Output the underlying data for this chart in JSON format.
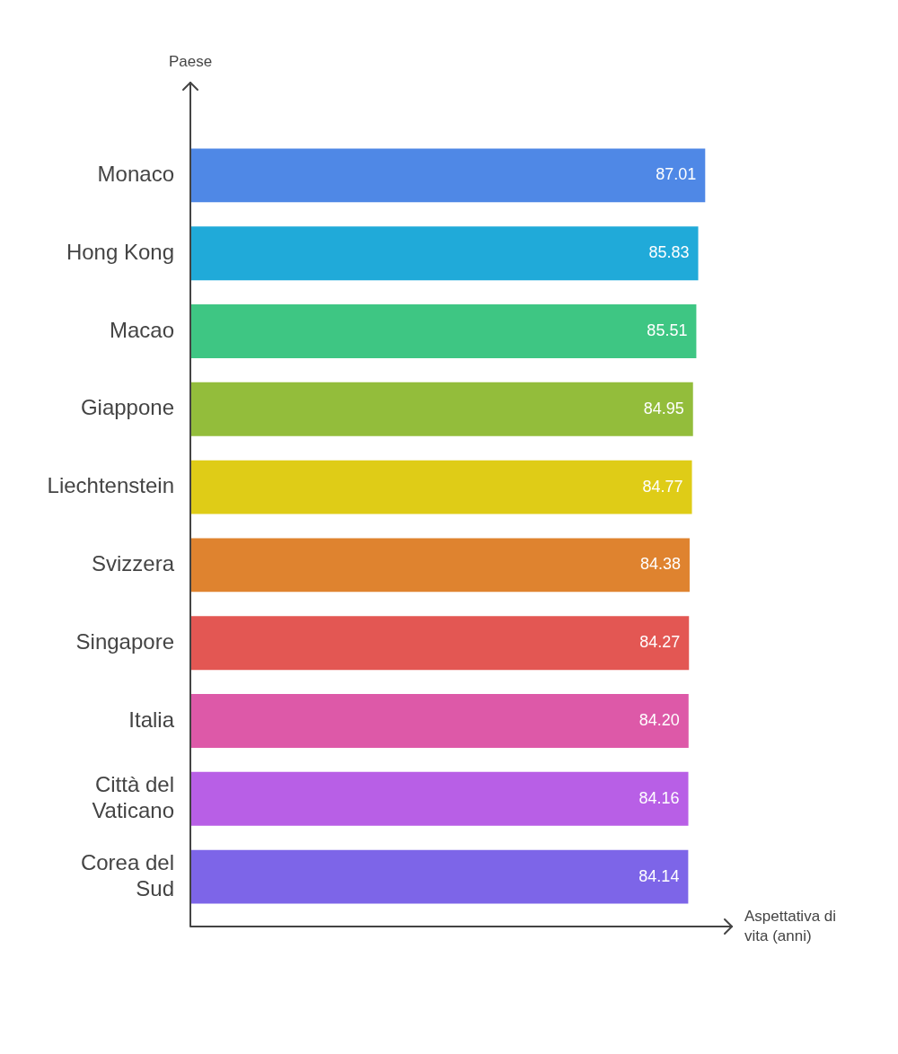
{
  "chart_data": {
    "type": "bar",
    "orientation": "horizontal",
    "xlabel": "Aspettativa di vita (anni)",
    "ylabel": "Paese",
    "categories": [
      "Monaco",
      "Hong Kong",
      "Macao",
      "Giappone",
      "Liechtenstein",
      "Svizzera",
      "Singapore",
      "Italia",
      "Città del Vaticano",
      "Corea del Sud"
    ],
    "values": [
      87.01,
      85.83,
      85.51,
      84.95,
      84.77,
      84.38,
      84.27,
      84.2,
      84.16,
      84.14
    ],
    "colors": [
      "#4f88e6",
      "#20aad9",
      "#3ec683",
      "#93bd3b",
      "#dfcc17",
      "#df832f",
      "#e35753",
      "#dd59a8",
      "#b85fe6",
      "#7d65e8"
    ],
    "value_labels": [
      "87.01",
      "85.83",
      "85.51",
      "84.95",
      "84.77",
      "84.38",
      "84.27",
      "84.20",
      "84.16",
      "84.14"
    ],
    "tick_labels": "y",
    "data_labels": true
  }
}
